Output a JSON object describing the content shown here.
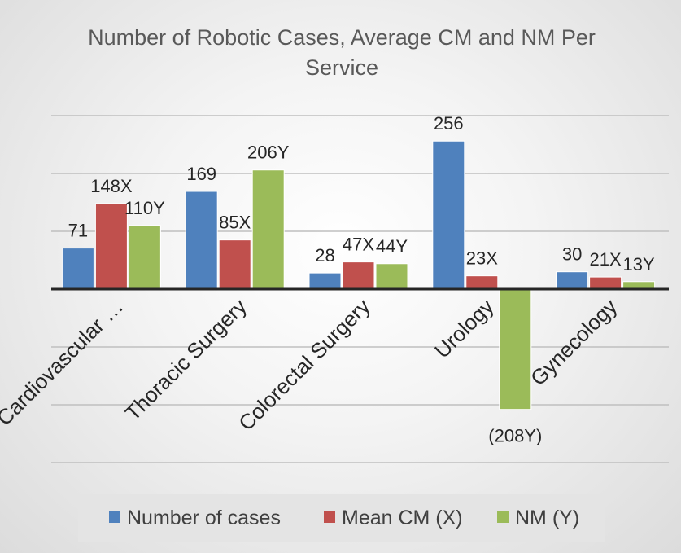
{
  "chart_data": {
    "type": "bar",
    "title": "Number of Robotic Cases, Average CM and NM Per Service",
    "title_lines": [
      "Number of Robotic Cases, Average CM and NM Per",
      "Service"
    ],
    "categories": [
      "Cardiovascular …",
      "Thoracic Surgery",
      "Colorectal Surgery",
      "Urology",
      "Gynecology"
    ],
    "series": [
      {
        "name": "Number of cases",
        "color": "#4f81bd",
        "values": [
          71,
          169,
          28,
          256,
          30
        ],
        "labels": [
          "71",
          "169",
          "28",
          "256",
          "30"
        ]
      },
      {
        "name": "Mean CM (X)",
        "color": "#c0504d",
        "values": [
          148,
          85,
          47,
          23,
          21
        ],
        "labels": [
          "148X",
          "85X",
          "47X",
          "23X",
          "21X"
        ]
      },
      {
        "name": "NM (Y)",
        "color": "#9bbb59",
        "values": [
          110,
          206,
          44,
          -208,
          13
        ],
        "labels": [
          "110Y",
          "206Y",
          "44Y",
          "(208Y)",
          "13Y"
        ]
      }
    ],
    "ylim": [
      -300,
      300
    ],
    "grid": true,
    "legend": "bottom"
  }
}
